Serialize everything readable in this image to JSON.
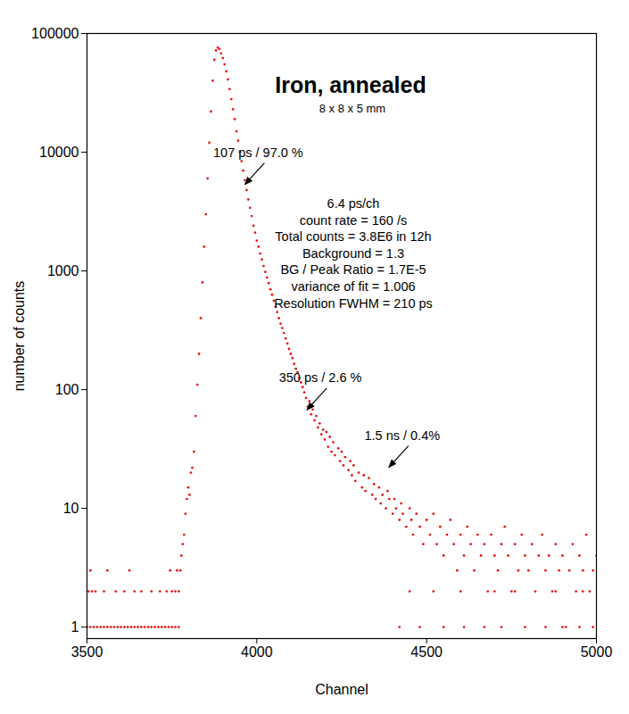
{
  "chart_data": {
    "type": "scatter",
    "title": "Iron, annealed",
    "subtitle": "8 x 8 x 5 mm",
    "x_label": "Channel",
    "y_label": "number of counts",
    "color": "#e31b1b",
    "marker": "circle",
    "log": "y",
    "grid": false,
    "xlim": [
      3500,
      5000
    ],
    "xticks": [
      3500,
      4000,
      4500,
      5000
    ],
    "ylim": [
      0.8,
      100000
    ],
    "yticks": [
      1,
      10,
      100,
      1000,
      10000,
      100000
    ],
    "text_lines": [
      "6.4 ps/ch",
      "count rate = 160 /s",
      "Total counts = 3.8E6 in 12h",
      "Background = 1.3",
      "BG / Peak Ratio = 1.7E-5",
      "variance of fit = 1.006",
      "Resolution FWHM = 210 ps"
    ],
    "annotations": [
      {
        "text": "107 ps / 97.0 %",
        "x": 3966,
        "y": 5300
      },
      {
        "text": "350 ps / 2.6 %",
        "x": 4149,
        "y": 67
      },
      {
        "text": "1.5 ns / 0.4%",
        "x": 4390,
        "y": 22
      }
    ],
    "x": [
      3500,
      3510,
      3520,
      3530,
      3540,
      3550,
      3560,
      3570,
      3580,
      3590,
      3600,
      3610,
      3620,
      3630,
      3640,
      3650,
      3660,
      3670,
      3680,
      3690,
      3700,
      3710,
      3720,
      3730,
      3740,
      3750,
      3760,
      3770,
      3505,
      3515,
      3525,
      3550,
      3585,
      3610,
      3640,
      3660,
      3690,
      3715,
      3735,
      3750,
      3760,
      3770,
      3510,
      3560,
      3625,
      3745,
      3765,
      3775,
      3778,
      3782,
      3786,
      3790,
      3794,
      3798,
      3802,
      3806,
      3810,
      3815,
      3820,
      3825,
      3830,
      3835,
      3840,
      3845,
      3850,
      3855,
      3860,
      3865,
      3870,
      3875,
      3880,
      3885,
      3890,
      3895,
      3900,
      3905,
      3910,
      3915,
      3920,
      3925,
      3930,
      3935,
      3940,
      3945,
      3950,
      3955,
      3960,
      3965,
      3970,
      3975,
      3980,
      3985,
      3990,
      3995,
      4000,
      4005,
      4010,
      4015,
      4020,
      4025,
      4030,
      4035,
      4040,
      4045,
      4050,
      4055,
      4060,
      4065,
      4070,
      4075,
      4080,
      4085,
      4090,
      4095,
      4100,
      4105,
      4110,
      4115,
      4120,
      4125,
      4130,
      4135,
      4140,
      4145,
      4150,
      4155,
      4160,
      4165,
      4170,
      4175,
      4180,
      4185,
      4190,
      4195,
      4200,
      4205,
      4210,
      4215,
      4220,
      4225,
      4230,
      4240,
      4245,
      4250,
      4255,
      4260,
      4270,
      4275,
      4280,
      4285,
      4290,
      4300,
      4310,
      4315,
      4320,
      4330,
      4340,
      4345,
      4350,
      4360,
      4365,
      4370,
      4380,
      4385,
      4390,
      4400,
      4405,
      4410,
      4420,
      4425,
      4430,
      4440,
      4450,
      4455,
      4460,
      4470,
      4480,
      4490,
      4500,
      4510,
      4520,
      4530,
      4540,
      4550,
      4560,
      4570,
      4580,
      4590,
      4600,
      4610,
      4620,
      4630,
      4640,
      4650,
      4660,
      4670,
      4680,
      4690,
      4700,
      4710,
      4720,
      4730,
      4740,
      4750,
      4760,
      4770,
      4780,
      4790,
      4800,
      4810,
      4820,
      4830,
      4840,
      4850,
      4860,
      4870,
      4880,
      4890,
      4900,
      4910,
      4920,
      4930,
      4940,
      4950,
      4960,
      4970,
      4980,
      4990,
      5000,
      4420,
      4480,
      4550,
      4610,
      4670,
      4720,
      4790,
      4850,
      4900,
      4950,
      4990,
      4450,
      4520,
      4600,
      4700,
      4760,
      4880,
      4960
    ],
    "values": [
      1,
      1,
      1,
      1,
      1,
      1,
      1,
      1,
      1,
      1,
      1,
      1,
      1,
      1,
      1,
      1,
      1,
      1,
      1,
      1,
      1,
      1,
      1,
      1,
      1,
      1,
      1,
      1,
      2,
      2,
      2,
      2,
      2,
      2,
      2,
      2,
      2,
      2,
      2,
      2,
      2,
      2,
      3,
      3,
      3,
      3,
      3,
      3,
      4,
      5,
      6,
      9,
      12,
      15,
      13,
      20,
      22,
      30,
      60,
      110,
      200,
      400,
      800,
      1600,
      3000,
      6000,
      12000,
      22000,
      40000,
      60000,
      72000,
      76000,
      74000,
      68000,
      62000,
      55000,
      48000,
      41000,
      34000,
      28000,
      23000,
      19000,
      15000,
      12500,
      10000,
      8400,
      7000,
      5800,
      4800,
      4000,
      3400,
      2900,
      2400,
      2100,
      1800,
      1600,
      1400,
      1250,
      1100,
      980,
      880,
      790,
      700,
      630,
      560,
      500,
      450,
      400,
      360,
      330,
      300,
      270,
      245,
      220,
      200,
      185,
      165,
      150,
      140,
      125,
      115,
      105,
      95,
      85,
      72,
      80,
      62,
      68,
      55,
      60,
      48,
      52,
      42,
      46,
      38,
      44,
      33,
      40,
      30,
      36,
      28,
      32,
      25,
      30,
      23,
      27,
      21,
      25,
      19,
      23,
      17,
      20,
      15,
      19,
      14,
      18,
      13,
      16,
      12,
      15,
      11,
      13,
      10,
      14,
      12,
      9,
      12,
      10,
      8,
      11,
      9,
      7,
      10,
      8,
      6,
      9,
      7,
      5,
      8,
      6,
      9,
      5,
      7,
      4,
      6,
      8,
      5,
      3,
      6,
      4,
      7,
      5,
      3,
      6,
      4,
      5,
      2,
      6,
      4,
      3,
      5,
      7,
      4,
      2,
      5,
      3,
      6,
      4,
      3,
      5,
      2,
      4,
      6,
      3,
      4,
      2,
      5,
      3,
      4,
      1,
      3,
      5,
      2,
      4,
      3,
      6,
      2,
      3,
      4,
      1,
      1,
      1,
      1,
      1,
      1,
      1,
      1,
      1,
      1,
      1,
      2,
      2,
      2,
      2,
      2,
      2,
      2
    ]
  }
}
